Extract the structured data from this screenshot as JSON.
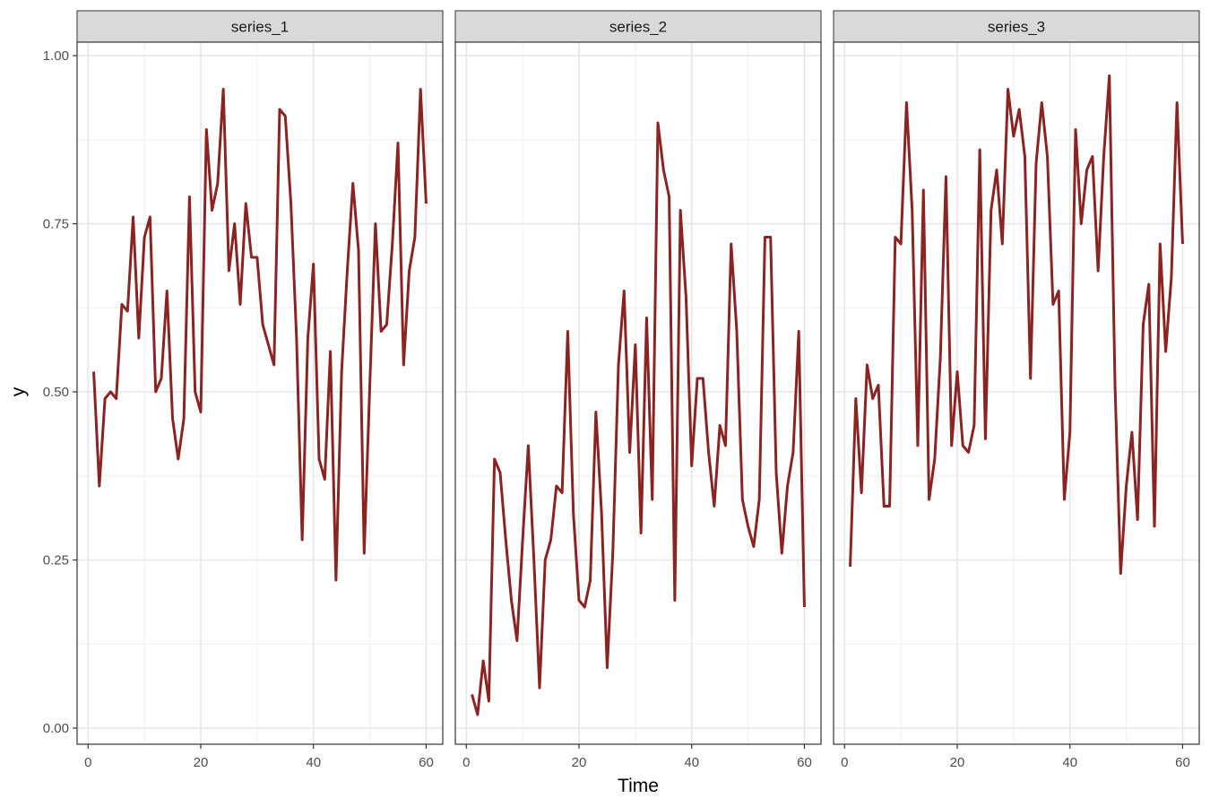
{
  "chart_data": {
    "type": "line",
    "xlabel": "Time",
    "ylabel": "y",
    "xlim": [
      1,
      60
    ],
    "ylim": [
      0,
      1
    ],
    "x_ticks": [
      0,
      20,
      40,
      60
    ],
    "x_tick_labels": [
      "0",
      "20",
      "40",
      "60"
    ],
    "y_ticks": [
      0,
      0.25,
      0.5,
      0.75,
      1
    ],
    "y_tick_labels": [
      "0.00",
      "0.25",
      "0.50",
      "0.75",
      "1.00"
    ],
    "grid": true,
    "line_color": "#8B2323",
    "panels": [
      {
        "name": "series_1",
        "x": [
          1,
          2,
          3,
          4,
          5,
          6,
          7,
          8,
          9,
          10,
          11,
          12,
          13,
          14,
          15,
          16,
          17,
          18,
          19,
          20,
          21,
          22,
          23,
          24,
          25,
          26,
          27,
          28,
          29,
          30,
          31,
          32,
          33,
          34,
          35,
          36,
          37,
          38,
          39,
          40,
          41,
          42,
          43,
          44,
          45,
          46,
          47,
          48,
          49,
          50,
          51,
          52,
          53,
          54,
          55,
          56,
          57,
          58,
          59,
          60
        ],
        "values": [
          0.53,
          0.36,
          0.49,
          0.5,
          0.49,
          0.63,
          0.62,
          0.76,
          0.58,
          0.73,
          0.76,
          0.5,
          0.52,
          0.65,
          0.46,
          0.4,
          0.46,
          0.79,
          0.5,
          0.47,
          0.89,
          0.77,
          0.81,
          0.95,
          0.68,
          0.75,
          0.63,
          0.78,
          0.7,
          0.7,
          0.6,
          0.57,
          0.54,
          0.92,
          0.91,
          0.78,
          0.58,
          0.28,
          0.58,
          0.69,
          0.4,
          0.37,
          0.56,
          0.22,
          0.53,
          0.68,
          0.81,
          0.71,
          0.26,
          0.51,
          0.75,
          0.59,
          0.6,
          0.72,
          0.87,
          0.54,
          0.68,
          0.73,
          0.95,
          0.78
        ]
      },
      {
        "name": "series_2",
        "x": [
          1,
          2,
          3,
          4,
          5,
          6,
          7,
          8,
          9,
          10,
          11,
          12,
          13,
          14,
          15,
          16,
          17,
          18,
          19,
          20,
          21,
          22,
          23,
          24,
          25,
          26,
          27,
          28,
          29,
          30,
          31,
          32,
          33,
          34,
          35,
          36,
          37,
          38,
          39,
          40,
          41,
          42,
          43,
          44,
          45,
          46,
          47,
          48,
          49,
          50,
          51,
          52,
          53,
          54,
          55,
          56,
          57,
          58,
          59,
          60
        ],
        "values": [
          0.05,
          0.02,
          0.1,
          0.04,
          0.4,
          0.38,
          0.28,
          0.19,
          0.13,
          0.28,
          0.42,
          0.25,
          0.06,
          0.25,
          0.28,
          0.36,
          0.35,
          0.59,
          0.32,
          0.19,
          0.18,
          0.22,
          0.47,
          0.32,
          0.09,
          0.26,
          0.54,
          0.65,
          0.41,
          0.57,
          0.29,
          0.61,
          0.34,
          0.9,
          0.83,
          0.79,
          0.19,
          0.77,
          0.64,
          0.39,
          0.52,
          0.52,
          0.41,
          0.33,
          0.45,
          0.42,
          0.72,
          0.59,
          0.34,
          0.3,
          0.27,
          0.34,
          0.73,
          0.73,
          0.38,
          0.26,
          0.36,
          0.41,
          0.59,
          0.18
        ]
      },
      {
        "name": "series_3",
        "x": [
          1,
          2,
          3,
          4,
          5,
          6,
          7,
          8,
          9,
          10,
          11,
          12,
          13,
          14,
          15,
          16,
          17,
          18,
          19,
          20,
          21,
          22,
          23,
          24,
          25,
          26,
          27,
          28,
          29,
          30,
          31,
          32,
          33,
          34,
          35,
          36,
          37,
          38,
          39,
          40,
          41,
          42,
          43,
          44,
          45,
          46,
          47,
          48,
          49,
          50,
          51,
          52,
          53,
          54,
          55,
          56,
          57,
          58,
          59,
          60
        ],
        "values": [
          0.24,
          0.49,
          0.35,
          0.54,
          0.49,
          0.51,
          0.33,
          0.33,
          0.73,
          0.72,
          0.93,
          0.77,
          0.42,
          0.8,
          0.34,
          0.4,
          0.55,
          0.82,
          0.42,
          0.53,
          0.42,
          0.41,
          0.45,
          0.86,
          0.43,
          0.77,
          0.83,
          0.72,
          0.95,
          0.88,
          0.92,
          0.85,
          0.52,
          0.84,
          0.93,
          0.85,
          0.63,
          0.65,
          0.34,
          0.44,
          0.89,
          0.75,
          0.83,
          0.85,
          0.68,
          0.85,
          0.97,
          0.51,
          0.23,
          0.36,
          0.44,
          0.31,
          0.6,
          0.66,
          0.3,
          0.72,
          0.56,
          0.67,
          0.93,
          0.72
        ]
      }
    ]
  }
}
